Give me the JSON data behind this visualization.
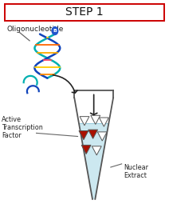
{
  "title": "STEP 1",
  "title_fontsize": 10,
  "title_box_color": "#cc0000",
  "title_box_fill": "#ffffff",
  "label_oligonucleotide": "Oligonucleotide",
  "label_active_tf": "Active\nTranscription\nFactor",
  "label_nuclear_extract": "Nuclear\nExtract",
  "liquid_color": "#cce8f0",
  "tube_outline_color": "#555555",
  "arrow_color": "#222222",
  "triangle_outline": "#555555",
  "triangle_fill_red": "#aa1100",
  "triangle_fill_white": "#ffffff",
  "background_color": "#ffffff",
  "text_color": "#222222",
  "dna_teal": "#00b0b0",
  "dna_blue": "#1144bb",
  "dna_biotin": "#2255cc",
  "triangles": [
    [
      0.5,
      0.455,
      false
    ],
    [
      0.565,
      0.46,
      false
    ],
    [
      0.615,
      0.45,
      false
    ],
    [
      0.495,
      0.39,
      true
    ],
    [
      0.55,
      0.395,
      true
    ],
    [
      0.605,
      0.385,
      false
    ],
    [
      0.51,
      0.325,
      true
    ],
    [
      0.572,
      0.32,
      false
    ]
  ]
}
